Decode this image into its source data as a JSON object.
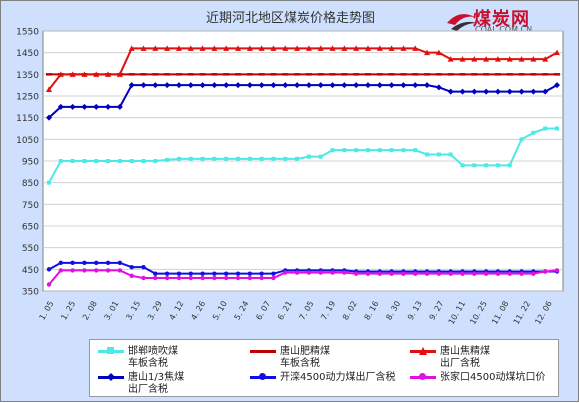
{
  "title": "近期河北地区煤炭价格走势图",
  "logo": {
    "main": "煤炭网",
    "sub": "COAL.COM.CN"
  },
  "chart_data": {
    "type": "line",
    "ylim": [
      350,
      1550
    ],
    "yticks": [
      350,
      450,
      550,
      650,
      750,
      850,
      950,
      1050,
      1150,
      1250,
      1350,
      1450,
      1550
    ],
    "xticks": [
      "1. 05",
      "1. 25",
      "2. 08",
      "3. 01",
      "3. 15",
      "3. 29",
      "4. 12",
      "4. 26",
      "5. 10",
      "5. 24",
      "6. 07",
      "6. 21",
      "7. 05",
      "7. 19",
      "8. 02",
      "8. 16",
      "8. 30",
      "9. 13",
      "9. 27",
      "10. 11",
      "10. 25",
      "11. 08",
      "11. 22",
      "12. 06"
    ],
    "series": [
      {
        "name": "邯郸喷吹煤\n车板含税",
        "color": "#4de8e8",
        "marker": "square",
        "values": [
          850,
          950,
          950,
          950,
          950,
          950,
          950,
          950,
          950,
          950,
          955,
          960,
          960,
          960,
          960,
          960,
          960,
          960,
          960,
          960,
          960,
          960,
          970,
          970,
          1000,
          1000,
          1000,
          1000,
          1000,
          1000,
          1000,
          1000,
          980,
          980,
          980,
          930,
          930,
          930,
          930,
          930,
          1050,
          1080,
          1100,
          1100
        ]
      },
      {
        "name": "唐山肥精煤\n车板含税",
        "color": "#c00000",
        "marker": "dash",
        "values": [
          1350,
          1350,
          1350,
          1350,
          1350,
          1350,
          1350,
          1350,
          1350,
          1350,
          1350,
          1350,
          1350,
          1350,
          1350,
          1350,
          1350,
          1350,
          1350,
          1350,
          1350,
          1350,
          1350,
          1350,
          1350,
          1350,
          1350,
          1350,
          1350,
          1350,
          1350,
          1350,
          1350,
          1350,
          1350,
          1350,
          1350,
          1350,
          1350,
          1350,
          1350,
          1350,
          1350,
          1350
        ]
      },
      {
        "name": "唐山焦精煤\n出厂含税",
        "color": "#e01010",
        "marker": "triangle",
        "values": [
          1280,
          1350,
          1350,
          1350,
          1350,
          1350,
          1350,
          1470,
          1470,
          1470,
          1470,
          1470,
          1470,
          1470,
          1470,
          1470,
          1470,
          1470,
          1470,
          1470,
          1470,
          1470,
          1470,
          1470,
          1470,
          1470,
          1470,
          1470,
          1470,
          1470,
          1470,
          1470,
          1450,
          1450,
          1420,
          1420,
          1420,
          1420,
          1420,
          1420,
          1420,
          1420,
          1420,
          1450
        ]
      },
      {
        "name": "唐山1/3焦煤\n出厂含税",
        "color": "#0000c0",
        "marker": "diamond",
        "values": [
          1150,
          1200,
          1200,
          1200,
          1200,
          1200,
          1200,
          1300,
          1300,
          1300,
          1300,
          1300,
          1300,
          1300,
          1300,
          1300,
          1300,
          1300,
          1300,
          1300,
          1300,
          1300,
          1300,
          1300,
          1300,
          1300,
          1300,
          1300,
          1300,
          1300,
          1300,
          1300,
          1300,
          1290,
          1270,
          1270,
          1270,
          1270,
          1270,
          1270,
          1270,
          1270,
          1270,
          1300
        ]
      },
      {
        "name": "开滦4500动力煤出厂含税",
        "color": "#1010e0",
        "marker": "circle",
        "values": [
          450,
          480,
          480,
          480,
          480,
          480,
          480,
          460,
          460,
          430,
          430,
          430,
          430,
          430,
          430,
          430,
          430,
          430,
          430,
          430,
          445,
          445,
          445,
          445,
          445,
          445,
          440,
          440,
          440,
          440,
          440,
          440,
          440,
          440,
          440,
          440,
          440,
          440,
          440,
          440,
          440,
          440,
          440,
          440
        ]
      },
      {
        "name": "张家口4500动煤坑口价",
        "color": "#e010e0",
        "marker": "circle",
        "values": [
          380,
          445,
          445,
          445,
          445,
          445,
          445,
          420,
          410,
          410,
          410,
          410,
          410,
          410,
          410,
          410,
          410,
          410,
          410,
          410,
          435,
          435,
          435,
          435,
          435,
          435,
          430,
          430,
          430,
          430,
          430,
          430,
          430,
          430,
          430,
          430,
          430,
          430,
          430,
          430,
          430,
          430,
          440,
          445
        ]
      }
    ]
  }
}
